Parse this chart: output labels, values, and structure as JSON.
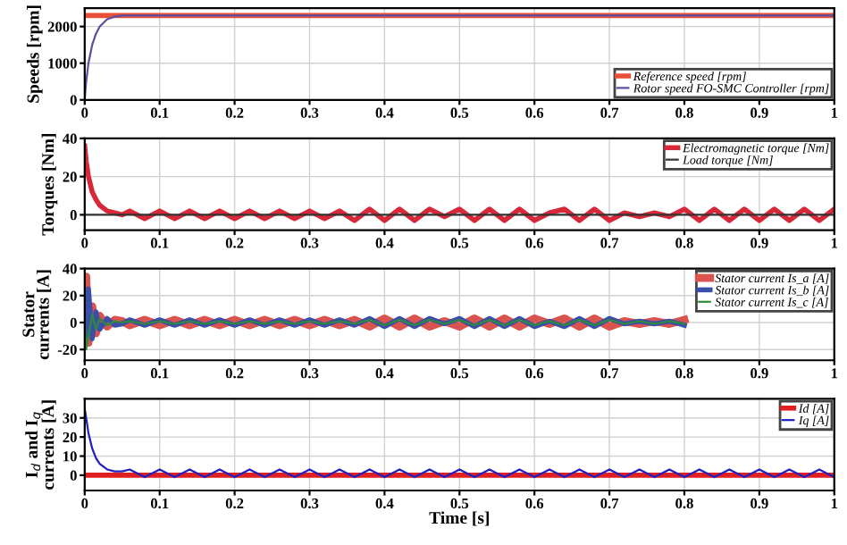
{
  "chart_data": [
    {
      "type": "line",
      "ylabel": "Speeds [rpm]",
      "xlim": [
        0,
        1
      ],
      "xticks": [
        0,
        0.1,
        0.2,
        0.3,
        0.4,
        0.5,
        0.6,
        0.7,
        0.8,
        0.9,
        1
      ],
      "ylim": [
        0,
        2500
      ],
      "yticks": [
        0,
        1000,
        2000
      ],
      "grid": true,
      "legend": "bottom right",
      "series": [
        {
          "name": "Reference speed [rpm]",
          "color": "#e8503a",
          "x": [
            0,
            1
          ],
          "values": [
            2300,
            2300
          ]
        },
        {
          "name": "Rotor speed FO-SMC Controller [rpm]",
          "color": "#5a4fa0",
          "x": [
            0,
            0.002,
            0.005,
            0.01,
            0.015,
            0.02,
            0.03,
            0.04,
            0.05,
            1
          ],
          "values": [
            0,
            500,
            1000,
            1500,
            1800,
            2000,
            2200,
            2270,
            2300,
            2300
          ]
        }
      ]
    },
    {
      "type": "line",
      "ylabel": "Torques [Nm]",
      "xlim": [
        0,
        1
      ],
      "xticks": [
        0,
        0.1,
        0.2,
        0.3,
        0.4,
        0.5,
        0.6,
        0.7,
        0.8,
        0.9,
        1
      ],
      "ylim": [
        -8,
        40
      ],
      "yticks": [
        0,
        20,
        40
      ],
      "grid": true,
      "legend": "top right",
      "series": [
        {
          "name": "Electromagnetic torque [Nm]",
          "color": "#d62839",
          "x": [
            0,
            0.002,
            0.005,
            0.01,
            0.015,
            0.02,
            0.03,
            0.04,
            0.05,
            0.06,
            0.08,
            0.1,
            0.12,
            0.14,
            0.16,
            0.18,
            0.2,
            0.22,
            0.24,
            0.26,
            0.28,
            0.3,
            0.32,
            0.34,
            0.36,
            0.38,
            0.4,
            0.42,
            0.44,
            0.46,
            0.48,
            0.5,
            0.52,
            0.54,
            0.56,
            0.58,
            0.6,
            0.62,
            0.64,
            0.66,
            0.68,
            0.7,
            0.72,
            0.74,
            0.76,
            0.78,
            0.8,
            0.82,
            0.84,
            0.86,
            0.88,
            0.9,
            0.92,
            0.94,
            0.96,
            0.98,
            1
          ],
          "values": [
            36,
            28,
            20,
            12,
            8,
            5,
            2,
            1,
            0,
            2,
            -2,
            2,
            -2,
            2,
            -2,
            2,
            -2,
            2,
            -2,
            2,
            -2,
            2,
            -2,
            2,
            -3,
            3,
            -3,
            3,
            -3,
            3,
            -1,
            3,
            -3,
            3,
            -3,
            3,
            -3,
            1,
            3,
            -3,
            3,
            -3,
            1,
            -1,
            1,
            -1,
            3,
            -3,
            3,
            -3,
            3,
            -3,
            3,
            -3,
            3,
            -3,
            3
          ]
        },
        {
          "name": "Load torque [Nm]",
          "color": "#333333",
          "x": [
            0,
            1
          ],
          "values": [
            0,
            0
          ]
        }
      ]
    },
    {
      "type": "line",
      "ylabel": "Stator\ncurrents [A]",
      "xlim": [
        0,
        1
      ],
      "xticks": [
        0,
        0.1,
        0.2,
        0.3,
        0.4,
        0.5,
        0.6,
        0.7,
        0.8,
        0.9,
        1
      ],
      "ylim": [
        -28,
        40
      ],
      "yticks": [
        -20,
        0,
        20,
        40
      ],
      "grid": true,
      "legend": "top right",
      "series": [
        {
          "name": "Stator current Is_a [A]",
          "color": "#d9534f",
          "x": [
            0,
            0.002,
            0.005,
            0.01,
            0.015,
            0.02,
            0.03,
            0.04,
            0.05,
            0.06,
            0.08,
            0.1,
            0.12,
            0.14,
            0.16,
            0.18,
            0.2,
            0.22,
            0.24,
            0.26,
            0.28,
            0.3,
            0.32,
            0.34,
            0.36,
            0.38,
            0.4,
            0.42,
            0.44,
            0.46,
            0.48,
            0.5,
            0.52,
            0.54,
            0.56,
            0.58,
            0.6,
            0.62,
            0.64,
            0.66,
            0.68,
            0.7,
            0.72,
            0.74,
            0.76,
            0.78,
            0.8
          ],
          "values": [
            0,
            34,
            -15,
            12,
            -8,
            5,
            -3,
            2,
            1,
            -2,
            2,
            -2,
            2,
            -2,
            2,
            -2,
            2,
            -2,
            2,
            -2,
            2,
            -2,
            2,
            -2,
            2,
            -3,
            3,
            -3,
            3,
            -3,
            1,
            -3,
            3,
            -3,
            3,
            -3,
            3,
            -1,
            3,
            -3,
            3,
            -3,
            1,
            -1,
            1,
            -1,
            2
          ]
        },
        {
          "name": "Stator current Is_b [A]",
          "color": "#3a4fa8",
          "x": [
            0,
            0.002,
            0.005,
            0.01,
            0.015,
            0.02,
            0.03,
            0.04,
            0.05,
            0.06,
            0.08,
            0.1,
            0.12,
            0.14,
            0.16,
            0.18,
            0.2,
            0.22,
            0.24,
            0.26,
            0.28,
            0.3,
            0.32,
            0.34,
            0.36,
            0.38,
            0.4,
            0.42,
            0.44,
            0.46,
            0.48,
            0.5,
            0.52,
            0.54,
            0.56,
            0.58,
            0.6,
            0.62,
            0.64,
            0.66,
            0.68,
            0.7,
            0.72,
            0.74,
            0.76,
            0.78,
            0.8
          ],
          "values": [
            0,
            -10,
            25,
            -12,
            8,
            -5,
            3,
            -2,
            -1,
            2,
            -2,
            2,
            -2,
            2,
            -2,
            2,
            -2,
            2,
            -2,
            2,
            -2,
            2,
            -2,
            2,
            -2,
            3,
            -3,
            3,
            -3,
            3,
            -1,
            3,
            -3,
            3,
            -3,
            3,
            -3,
            1,
            -3,
            3,
            -3,
            3,
            -1,
            1,
            -1,
            1,
            -2
          ]
        },
        {
          "name": "Stator current Is_c [A]",
          "color": "#2e8b3a",
          "x": [
            0,
            0.002,
            0.005,
            0.01,
            0.015,
            0.02,
            0.03,
            0.04,
            0.05,
            0.06,
            0.08,
            0.1,
            0.12,
            0.14,
            0.16,
            0.18,
            0.2,
            0.22,
            0.24,
            0.26,
            0.28,
            0.3,
            0.32,
            0.34,
            0.36,
            0.38,
            0.4,
            0.42,
            0.44,
            0.46,
            0.48,
            0.5,
            0.52,
            0.54,
            0.56,
            0.58,
            0.6,
            0.62,
            0.64,
            0.66,
            0.68,
            0.7,
            0.72,
            0.74,
            0.76,
            0.78,
            0.8
          ],
          "values": [
            0,
            -20,
            -10,
            6,
            -5,
            3,
            -2,
            1,
            0,
            1,
            -1,
            1,
            -1,
            1,
            -1,
            1,
            -1,
            1,
            -1,
            1,
            -1,
            1,
            -1,
            1,
            -1,
            2,
            -2,
            2,
            -2,
            2,
            -1,
            2,
            -2,
            2,
            -2,
            2,
            -2,
            1,
            -2,
            2,
            -2,
            2,
            -1,
            1,
            -1,
            1,
            -1
          ]
        }
      ]
    },
    {
      "type": "line",
      "ylabel": "I$_{d}$ and I$_{q}$\ncurrents [A]",
      "xlabel": "Time [s]",
      "xlim": [
        0,
        1
      ],
      "xticks": [
        0,
        0.1,
        0.2,
        0.3,
        0.4,
        0.5,
        0.6,
        0.7,
        0.8,
        0.9,
        1
      ],
      "ylim": [
        -8,
        40
      ],
      "yticks": [
        0,
        10,
        20,
        30
      ],
      "grid": true,
      "legend": "top right",
      "series": [
        {
          "name": "Id [A]",
          "color": "#e02020",
          "x": [
            0,
            1
          ],
          "values": [
            0,
            0
          ]
        },
        {
          "name": "Iq [A]",
          "color": "#2020c0",
          "x": [
            0,
            0.002,
            0.005,
            0.01,
            0.015,
            0.02,
            0.03,
            0.04,
            0.05,
            0.06,
            0.08,
            0.1,
            0.12,
            0.14,
            0.16,
            0.18,
            0.2,
            0.22,
            0.24,
            0.26,
            0.28,
            0.3,
            0.32,
            0.34,
            0.36,
            0.38,
            0.4,
            0.42,
            0.44,
            0.46,
            0.48,
            0.5,
            0.52,
            0.54,
            0.56,
            0.58,
            0.6,
            0.62,
            0.64,
            0.66,
            0.68,
            0.7,
            0.72,
            0.74,
            0.76,
            0.78,
            0.8,
            0.82,
            0.84,
            0.86,
            0.88,
            0.9,
            0.92,
            0.94,
            0.96,
            0.98,
            1
          ],
          "values": [
            35,
            30,
            22,
            14,
            9,
            6,
            3,
            2,
            2,
            3,
            -1,
            3,
            -1,
            3,
            -1,
            3,
            -1,
            3,
            -1,
            3,
            -1,
            3,
            -1,
            3,
            -1,
            3,
            -1,
            3,
            -1,
            3,
            -1,
            3,
            -1,
            3,
            -1,
            3,
            -1,
            3,
            -1,
            3,
            -1,
            3,
            -1,
            3,
            -1,
            3,
            -1,
            3,
            -1,
            3,
            -1,
            3,
            -1,
            3,
            -1,
            3,
            -1
          ]
        }
      ]
    }
  ]
}
